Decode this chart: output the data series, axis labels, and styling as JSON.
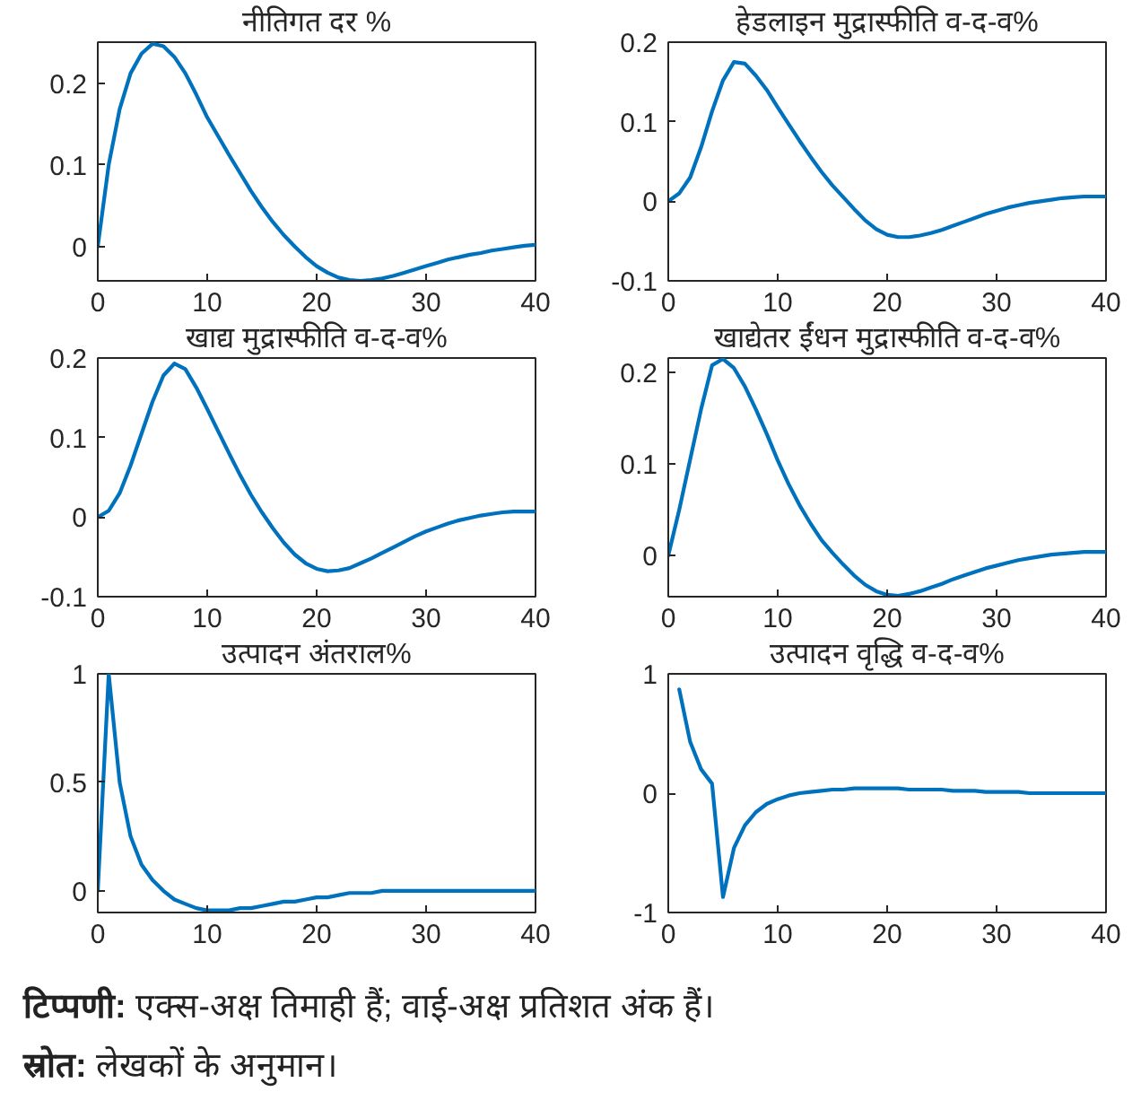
{
  "chart_data": [
    {
      "type": "line",
      "title": "नीतिगत दर %",
      "x": [
        0,
        1,
        2,
        3,
        4,
        5,
        6,
        7,
        8,
        9,
        10,
        11,
        12,
        13,
        14,
        15,
        16,
        17,
        18,
        19,
        20,
        21,
        22,
        23,
        24,
        25,
        26,
        27,
        28,
        29,
        30,
        31,
        32,
        33,
        34,
        35,
        36,
        37,
        38,
        39,
        40
      ],
      "series": [
        {
          "color": "#0072bd",
          "values": [
            0,
            0.1,
            0.168,
            0.212,
            0.236,
            0.248,
            0.245,
            0.232,
            0.212,
            0.186,
            0.158,
            0.135,
            0.112,
            0.09,
            0.068,
            0.048,
            0.03,
            0.014,
            0.0,
            -0.013,
            -0.024,
            -0.032,
            -0.038,
            -0.041,
            -0.042,
            -0.041,
            -0.039,
            -0.036,
            -0.032,
            -0.028,
            -0.024,
            -0.02,
            -0.016,
            -0.013,
            -0.01,
            -0.008,
            -0.005,
            -0.003,
            -0.001,
            0.001,
            0.002
          ]
        }
      ],
      "xlim": [
        0,
        40
      ],
      "ylim": [
        -0.042,
        0.25
      ],
      "xticks": [
        0,
        10,
        20,
        30,
        40
      ],
      "yticks": [
        0,
        0.1,
        0.2
      ],
      "grid": false
    },
    {
      "type": "line",
      "title": "हेडलाइन मुद्रास्फीति व-द-व%",
      "x": [
        0,
        1,
        2,
        3,
        4,
        5,
        6,
        7,
        8,
        9,
        10,
        11,
        12,
        13,
        14,
        15,
        16,
        17,
        18,
        19,
        20,
        21,
        22,
        23,
        24,
        25,
        26,
        27,
        28,
        29,
        30,
        31,
        32,
        33,
        34,
        35,
        36,
        37,
        38,
        39,
        40
      ],
      "series": [
        {
          "color": "#0072bd",
          "values": [
            0,
            0.01,
            0.03,
            0.068,
            0.113,
            0.152,
            0.175,
            0.173,
            0.158,
            0.14,
            0.118,
            0.097,
            0.076,
            0.056,
            0.037,
            0.02,
            0.005,
            -0.01,
            -0.024,
            -0.035,
            -0.042,
            -0.045,
            -0.045,
            -0.043,
            -0.04,
            -0.036,
            -0.031,
            -0.026,
            -0.021,
            -0.016,
            -0.012,
            -0.008,
            -0.005,
            -0.002,
            0.0,
            0.002,
            0.004,
            0.005,
            0.006,
            0.006,
            0.006
          ]
        }
      ],
      "xlim": [
        0,
        40
      ],
      "ylim": [
        -0.1,
        0.2
      ],
      "xticks": [
        0,
        10,
        20,
        30,
        40
      ],
      "yticks": [
        -0.1,
        0,
        0.1,
        0.2
      ],
      "grid": false
    },
    {
      "type": "line",
      "title": "खाद्य मुद्रास्फीति व-द-व%",
      "x": [
        0,
        1,
        2,
        3,
        4,
        5,
        6,
        7,
        8,
        9,
        10,
        11,
        12,
        13,
        14,
        15,
        16,
        17,
        18,
        19,
        20,
        21,
        22,
        23,
        24,
        25,
        26,
        27,
        28,
        29,
        30,
        31,
        32,
        33,
        34,
        35,
        36,
        37,
        38,
        39,
        40
      ],
      "series": [
        {
          "color": "#0072bd",
          "values": [
            0,
            0.008,
            0.03,
            0.065,
            0.105,
            0.145,
            0.178,
            0.193,
            0.186,
            0.163,
            0.136,
            0.108,
            0.08,
            0.053,
            0.028,
            0.006,
            -0.014,
            -0.032,
            -0.047,
            -0.058,
            -0.065,
            -0.068,
            -0.067,
            -0.064,
            -0.058,
            -0.052,
            -0.045,
            -0.038,
            -0.031,
            -0.024,
            -0.018,
            -0.013,
            -0.008,
            -0.004,
            -0.001,
            0.002,
            0.004,
            0.006,
            0.007,
            0.007,
            0.007
          ]
        }
      ],
      "xlim": [
        0,
        40
      ],
      "ylim": [
        -0.1,
        0.2
      ],
      "xticks": [
        0,
        10,
        20,
        30,
        40
      ],
      "yticks": [
        -0.1,
        0,
        0.1,
        0.2
      ],
      "grid": false
    },
    {
      "type": "line",
      "title": "खाद्येतर ईंधन मुद्रास्फीति व-द-व%",
      "x": [
        0,
        1,
        2,
        3,
        4,
        5,
        6,
        7,
        8,
        9,
        10,
        11,
        12,
        13,
        14,
        15,
        16,
        17,
        18,
        19,
        20,
        21,
        22,
        23,
        24,
        25,
        26,
        27,
        28,
        29,
        30,
        31,
        32,
        33,
        34,
        35,
        36,
        37,
        38,
        39,
        40
      ],
      "series": [
        {
          "color": "#0072bd",
          "values": [
            0,
            0.05,
            0.105,
            0.16,
            0.208,
            0.215,
            0.205,
            0.185,
            0.16,
            0.133,
            0.104,
            0.078,
            0.055,
            0.035,
            0.017,
            0.003,
            -0.01,
            -0.022,
            -0.032,
            -0.039,
            -0.043,
            -0.044,
            -0.042,
            -0.039,
            -0.035,
            -0.031,
            -0.026,
            -0.022,
            -0.018,
            -0.014,
            -0.011,
            -0.008,
            -0.005,
            -0.003,
            -0.001,
            0.001,
            0.002,
            0.003,
            0.004,
            0.004,
            0.004
          ]
        }
      ],
      "xlim": [
        0,
        40
      ],
      "ylim": [
        -0.045,
        0.216
      ],
      "xticks": [
        0,
        10,
        20,
        30,
        40
      ],
      "yticks": [
        0,
        0.1,
        0.2
      ],
      "grid": false
    },
    {
      "type": "line",
      "title": "उत्पादन अंतराल%",
      "x": [
        0,
        1,
        2,
        3,
        4,
        5,
        6,
        7,
        8,
        9,
        10,
        11,
        12,
        13,
        14,
        15,
        16,
        17,
        18,
        19,
        20,
        21,
        22,
        23,
        24,
        25,
        26,
        27,
        28,
        29,
        30,
        31,
        32,
        33,
        34,
        35,
        36,
        37,
        38,
        39,
        40
      ],
      "series": [
        {
          "color": "#0072bd",
          "values": [
            0,
            1.0,
            0.5,
            0.25,
            0.12,
            0.05,
            0,
            -0.04,
            -0.06,
            -0.08,
            -0.09,
            -0.09,
            -0.09,
            -0.08,
            -0.08,
            -0.07,
            -0.06,
            -0.05,
            -0.05,
            -0.04,
            -0.03,
            -0.03,
            -0.02,
            -0.01,
            -0.01,
            -0.01,
            0,
            0,
            0,
            0,
            0,
            0,
            0,
            0,
            0,
            0,
            0,
            0,
            0,
            0,
            0
          ]
        }
      ],
      "xlim": [
        0,
        40
      ],
      "ylim": [
        -0.1,
        1.0
      ],
      "xticks": [
        0,
        10,
        20,
        30,
        40
      ],
      "yticks": [
        0,
        0.5,
        1
      ],
      "grid": false
    },
    {
      "type": "line",
      "title": "उत्पादन वृद्धि व-द-व%",
      "x": [
        1,
        2,
        3,
        4,
        5,
        6,
        7,
        8,
        9,
        10,
        11,
        12,
        13,
        14,
        15,
        16,
        17,
        18,
        19,
        20,
        21,
        22,
        23,
        24,
        25,
        26,
        27,
        28,
        29,
        30,
        31,
        32,
        33,
        34,
        35,
        36,
        37,
        38,
        39,
        40
      ],
      "series": [
        {
          "color": "#0072bd",
          "values": [
            0.87,
            0.43,
            0.2,
            0.08,
            -0.87,
            -0.46,
            -0.27,
            -0.16,
            -0.09,
            -0.05,
            -0.02,
            0,
            0.01,
            0.02,
            0.03,
            0.03,
            0.04,
            0.04,
            0.04,
            0.04,
            0.04,
            0.03,
            0.03,
            0.03,
            0.03,
            0.02,
            0.02,
            0.02,
            0.01,
            0.01,
            0.01,
            0.01,
            0,
            0,
            0,
            0,
            0,
            0,
            0,
            0
          ]
        }
      ],
      "xlim": [
        0,
        40
      ],
      "ylim": [
        -1,
        1
      ],
      "xticks": [
        0,
        10,
        20,
        30,
        40
      ],
      "yticks": [
        -1,
        0,
        1
      ],
      "grid": false
    },
    {
      "type": "other",
      "annotations": [
        "टिप्पणी: एक्स-अक्ष तिमाही हैं; वाई-अक्ष प्रतिशत अंक हैं।",
        "स्रोत: लेखकों के अनुमान।"
      ]
    }
  ]
}
